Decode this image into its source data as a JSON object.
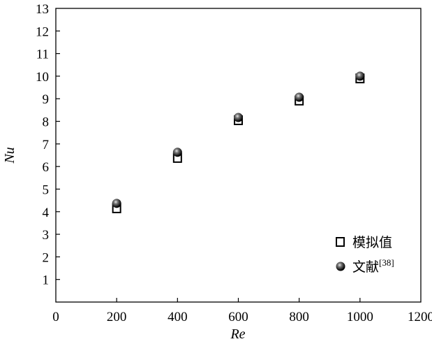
{
  "chart_data": {
    "type": "scatter",
    "title": "",
    "xlabel": "Re",
    "ylabel": "Nu",
    "xlim": [
      0,
      1200
    ],
    "ylim": [
      0,
      13
    ],
    "xticks": [
      0,
      200,
      400,
      600,
      800,
      1000,
      1200
    ],
    "yticks": [
      1,
      2,
      3,
      4,
      5,
      6,
      7,
      8,
      9,
      10,
      11,
      12,
      13
    ],
    "grid": false,
    "legend_position": "bottom-right",
    "series": [
      {
        "name": "模拟值",
        "marker": "open-square",
        "x": [
          200,
          400,
          600,
          800,
          1000
        ],
        "y": [
          4.15,
          6.38,
          8.05,
          8.92,
          9.9
        ]
      },
      {
        "name": "文献",
        "name_superscript": "[38]",
        "marker": "filled-sphere",
        "x": [
          200,
          400,
          600,
          800,
          1000
        ],
        "y": [
          4.37,
          6.63,
          8.17,
          9.07,
          10.0
        ]
      }
    ]
  }
}
